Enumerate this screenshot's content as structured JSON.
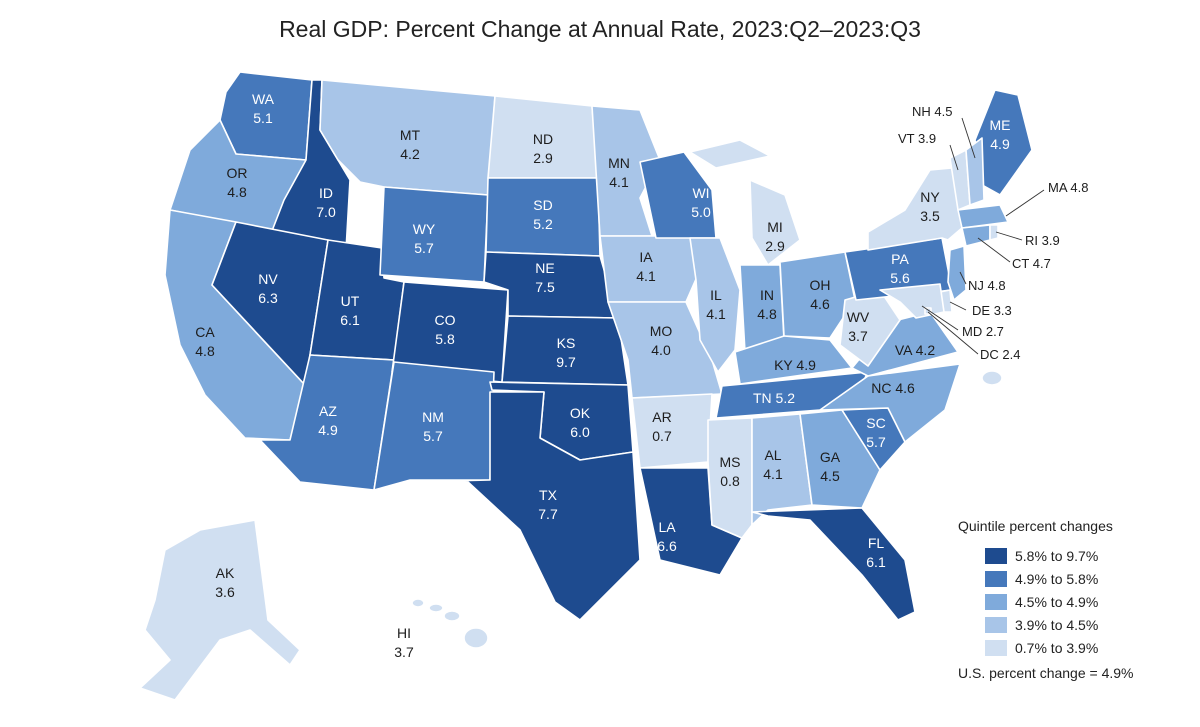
{
  "title": "Real GDP: Percent Change at Annual Rate, 2023:Q2–2023:Q3",
  "legend": {
    "title": "Quintile percent changes",
    "items": [
      {
        "label": "5.8% to 9.7%",
        "color": "#1e4b8f"
      },
      {
        "label": "4.9% to 5.8%",
        "color": "#4578bb"
      },
      {
        "label": "4.5% to 4.9%",
        "color": "#7faadb"
      },
      {
        "label": "3.9% to 4.5%",
        "color": "#a8c5e8"
      },
      {
        "label": "0.7% to 3.9%",
        "color": "#d0dff1"
      }
    ],
    "us_change": "U.S. percent change = 4.9%"
  },
  "states": {
    "WA": {
      "abbr": "WA",
      "value": "5.1"
    },
    "OR": {
      "abbr": "OR",
      "value": "4.8"
    },
    "CA": {
      "abbr": "CA",
      "value": "4.8"
    },
    "ID": {
      "abbr": "ID",
      "value": "7.0"
    },
    "NV": {
      "abbr": "NV",
      "value": "6.3"
    },
    "MT": {
      "abbr": "MT",
      "value": "4.2"
    },
    "WY": {
      "abbr": "WY",
      "value": "5.7"
    },
    "UT": {
      "abbr": "UT",
      "value": "6.1"
    },
    "AZ": {
      "abbr": "AZ",
      "value": "4.9"
    },
    "CO": {
      "abbr": "CO",
      "value": "5.8"
    },
    "NM": {
      "abbr": "NM",
      "value": "5.7"
    },
    "ND": {
      "abbr": "ND",
      "value": "2.9"
    },
    "SD": {
      "abbr": "SD",
      "value": "5.2"
    },
    "NE": {
      "abbr": "NE",
      "value": "7.5"
    },
    "KS": {
      "abbr": "KS",
      "value": "9.7"
    },
    "OK": {
      "abbr": "OK",
      "value": "6.0"
    },
    "TX": {
      "abbr": "TX",
      "value": "7.7"
    },
    "MN": {
      "abbr": "MN",
      "value": "4.1"
    },
    "IA": {
      "abbr": "IA",
      "value": "4.1"
    },
    "MO": {
      "abbr": "MO",
      "value": "4.0"
    },
    "AR": {
      "abbr": "AR",
      "value": "0.7"
    },
    "LA": {
      "abbr": "LA",
      "value": "6.6"
    },
    "WI": {
      "abbr": "WI",
      "value": "5.0"
    },
    "IL": {
      "abbr": "IL",
      "value": "4.1"
    },
    "MI": {
      "abbr": "MI",
      "value": "2.9"
    },
    "IN": {
      "abbr": "IN",
      "value": "4.8"
    },
    "OH": {
      "abbr": "OH",
      "value": "4.6"
    },
    "KY": {
      "abbr": "KY",
      "value": "4.9"
    },
    "TN": {
      "abbr": "TN",
      "value": "5.2"
    },
    "MS": {
      "abbr": "MS",
      "value": "0.8"
    },
    "AL": {
      "abbr": "AL",
      "value": "4.1"
    },
    "GA": {
      "abbr": "GA",
      "value": "4.5"
    },
    "FL": {
      "abbr": "FL",
      "value": "6.1"
    },
    "SC": {
      "abbr": "SC",
      "value": "5.7"
    },
    "NC": {
      "abbr": "NC",
      "value": "4.6"
    },
    "VA": {
      "abbr": "VA",
      "value": "4.2"
    },
    "WV": {
      "abbr": "WV",
      "value": "3.7"
    },
    "PA": {
      "abbr": "PA",
      "value": "5.6"
    },
    "NY": {
      "abbr": "NY",
      "value": "3.5"
    },
    "ME": {
      "abbr": "ME",
      "value": "4.9"
    },
    "NH": {
      "abbr": "NH",
      "value": "4.5"
    },
    "VT": {
      "abbr": "VT",
      "value": "3.9"
    },
    "MA": {
      "abbr": "MA",
      "value": "4.8"
    },
    "RI": {
      "abbr": "RI",
      "value": "3.9"
    },
    "CT": {
      "abbr": "CT",
      "value": "4.7"
    },
    "NJ": {
      "abbr": "NJ",
      "value": "4.8"
    },
    "DE": {
      "abbr": "DE",
      "value": "3.3"
    },
    "MD": {
      "abbr": "MD",
      "value": "2.7"
    },
    "DC": {
      "abbr": "DC",
      "value": "2.4"
    },
    "AK": {
      "abbr": "AK",
      "value": "3.6"
    },
    "HI": {
      "abbr": "HI",
      "value": "3.7"
    }
  }
}
